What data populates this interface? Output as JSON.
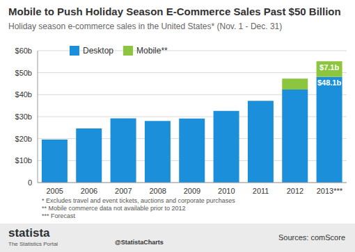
{
  "chart_data": {
    "type": "bar",
    "title": "Mobile to Push Holiday Season E-Commerce Sales Past $50 Billion",
    "subtitle": "Holiday season e-commerce sales in the United States* (Nov. 1 - Dec. 31)",
    "categories": [
      "2005",
      "2006",
      "2007",
      "2008",
      "2009",
      "2010",
      "2011",
      "2012",
      "2013***"
    ],
    "series": [
      {
        "name": "Desktop",
        "color": "#1b8fd9",
        "values": [
          19.6,
          24.6,
          29.2,
          28.0,
          29.1,
          32.6,
          37.2,
          42.3,
          48.1
        ],
        "data_labels": true,
        "value_labels": [
          null,
          null,
          null,
          null,
          null,
          null,
          null,
          null,
          "$48.1b"
        ]
      },
      {
        "name": "Mobile**",
        "color": "#8cc63f",
        "values": [
          null,
          null,
          null,
          null,
          null,
          null,
          null,
          5.0,
          7.1
        ],
        "data_labels": true,
        "value_labels": [
          null,
          null,
          null,
          null,
          null,
          null,
          null,
          null,
          "$7.1b"
        ]
      }
    ],
    "stacked": true,
    "ylim": [
      0,
      60
    ],
    "yticks": [
      {
        "value": 0,
        "label": "0"
      },
      {
        "value": 10,
        "label": "$10b"
      },
      {
        "value": 20,
        "label": "$20b"
      },
      {
        "value": 30,
        "label": "$30b"
      },
      {
        "value": 40,
        "label": "$40b"
      },
      {
        "value": 50,
        "label": "$50b"
      },
      {
        "value": 60,
        "label": "$60b"
      }
    ],
    "grid": true,
    "legend": "top-left",
    "annotations": [
      "* Excludes travel and event tickets, auctions and corporate purchases",
      "** Mobile commerce data not available prior to 2012",
      "*** Forecast"
    ],
    "footer": {
      "brand": "statista",
      "tagline": "The Statistics Portal",
      "handle": "@StatistaCharts",
      "source": "Sources: comScore"
    }
  }
}
